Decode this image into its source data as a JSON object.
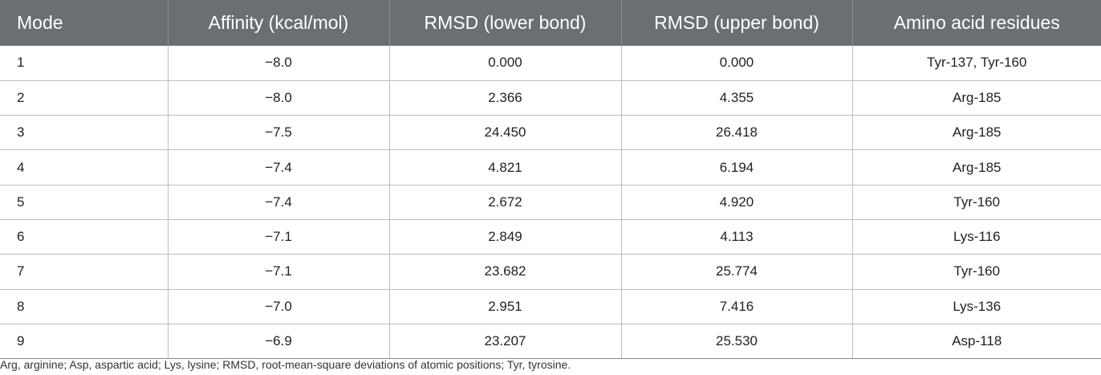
{
  "table": {
    "headers": [
      "Mode",
      "Affinity (kcal/mol)",
      "RMSD (lower bond)",
      "RMSD (upper bond)",
      "Amino acid residues"
    ],
    "rows": [
      [
        "1",
        "−8.0",
        "0.000",
        "0.000",
        "Tyr-137, Tyr-160"
      ],
      [
        "2",
        "−8.0",
        "2.366",
        "4.355",
        "Arg-185"
      ],
      [
        "3",
        "−7.5",
        "24.450",
        "26.418",
        "Arg-185"
      ],
      [
        "4",
        "−7.4",
        "4.821",
        "6.194",
        "Arg-185"
      ],
      [
        "5",
        "−7.4",
        "2.672",
        "4.920",
        "Tyr-160"
      ],
      [
        "6",
        "−7.1",
        "2.849",
        "4.113",
        "Lys-116"
      ],
      [
        "7",
        "−7.1",
        "23.682",
        "25.774",
        "Tyr-160"
      ],
      [
        "8",
        "−7.0",
        "2.951",
        "7.416",
        "Lys-136"
      ],
      [
        "9",
        "−6.9",
        "23.207",
        "25.530",
        "Asp-118"
      ]
    ]
  },
  "footnote": "Arg, arginine; Asp, aspartic acid; Lys, lysine; RMSD, root-mean-square deviations of atomic positions; Tyr, tyrosine.",
  "colors": {
    "header_bg": "#6b6e72",
    "header_text": "#ffffff",
    "rule": "#bdbdbd"
  }
}
